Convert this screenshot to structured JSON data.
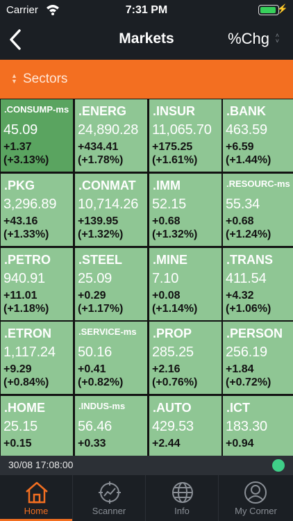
{
  "status": {
    "carrier": "Carrier",
    "time": "7:31 PM"
  },
  "nav": {
    "title": "Markets",
    "sort_label": "%Chg"
  },
  "sector": {
    "label": "Sectors"
  },
  "tiles": [
    {
      "name": ".CONSUMP-ms",
      "price": "45.09",
      "change": "+1.37",
      "pct": "(+3.13%)"
    },
    {
      "name": ".ENERG",
      "price": "24,890.28",
      "change": "+434.41",
      "pct": "(+1.78%)"
    },
    {
      "name": ".INSUR",
      "price": "11,065.70",
      "change": "+175.25",
      "pct": "(+1.61%)"
    },
    {
      "name": ".BANK",
      "price": "463.59",
      "change": "+6.59",
      "pct": "(+1.44%)"
    },
    {
      "name": ".PKG",
      "price": "3,296.89",
      "change": "+43.16",
      "pct": "(+1.33%)"
    },
    {
      "name": ".CONMAT",
      "price": "10,714.26",
      "change": "+139.95",
      "pct": "(+1.32%)"
    },
    {
      "name": ".IMM",
      "price": "52.15",
      "change": "+0.68",
      "pct": "(+1.32%)"
    },
    {
      "name": ".RESOURC-ms",
      "price": "55.34",
      "change": "+0.68",
      "pct": "(+1.24%)"
    },
    {
      "name": ".PETRO",
      "price": "940.91",
      "change": "+11.01",
      "pct": "(+1.18%)"
    },
    {
      "name": ".STEEL",
      "price": "25.09",
      "change": "+0.29",
      "pct": "(+1.17%)"
    },
    {
      "name": ".MINE",
      "price": "7.10",
      "change": "+0.08",
      "pct": "(+1.14%)"
    },
    {
      "name": ".TRANS",
      "price": "411.54",
      "change": "+4.32",
      "pct": "(+1.06%)"
    },
    {
      "name": ".ETRON",
      "price": "1,117.24",
      "change": "+9.29",
      "pct": "(+0.84%)"
    },
    {
      "name": ".SERVICE-ms",
      "price": "50.16",
      "change": "+0.41",
      "pct": "(+0.82%)"
    },
    {
      "name": ".PROP",
      "price": "285.25",
      "change": "+2.16",
      "pct": "(+0.76%)"
    },
    {
      "name": ".PERSON",
      "price": "256.19",
      "change": "+1.84",
      "pct": "(+0.72%)"
    },
    {
      "name": ".HOME",
      "price": "25.15",
      "change": "+0.15",
      "pct": ""
    },
    {
      "name": ".INDUS-ms",
      "price": "56.46",
      "change": "+0.33",
      "pct": ""
    },
    {
      "name": ".AUTO",
      "price": "429.53",
      "change": "+2.44",
      "pct": ""
    },
    {
      "name": ".ICT",
      "price": "183.30",
      "change": "+0.94",
      "pct": ""
    }
  ],
  "footer": {
    "timestamp": "30/08 17:08:00"
  },
  "tabs": [
    {
      "label": "Home",
      "icon": "home-icon"
    },
    {
      "label": "Scanner",
      "icon": "scanner-icon"
    },
    {
      "label": "Info",
      "icon": "globe-icon"
    },
    {
      "label": "My Corner",
      "icon": "user-icon"
    }
  ],
  "colors": {
    "accent": "#f36f21",
    "tile": "#8fc694",
    "tile_highlight": "#5aa460",
    "live": "#3fcf88"
  }
}
